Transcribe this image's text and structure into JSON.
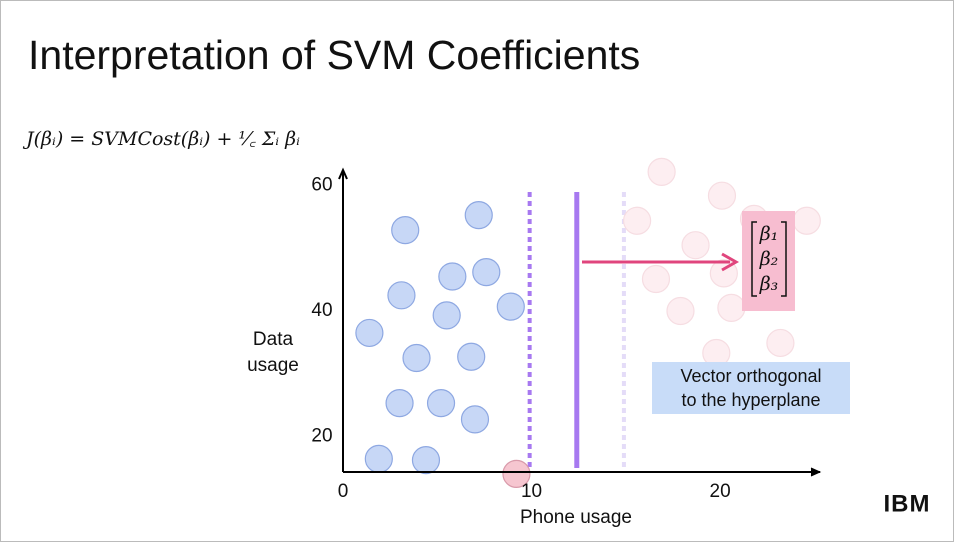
{
  "title": "Interpretation of SVM Coefficients",
  "formula": "J(βᵢ)  = SVMCost(βᵢ) + ¹⁄꜀ Σᵢ βᵢ",
  "logo": "IBM",
  "chart_data": {
    "type": "scatter",
    "x_label": "Phone usage",
    "y_label": [
      "Data",
      "usage"
    ],
    "xlim": [
      0,
      25.3
    ],
    "ylim": [
      7.6,
      62.5
    ],
    "xticks": [
      0,
      10,
      20
    ],
    "yticks": [
      20,
      40,
      60
    ],
    "series": [
      {
        "color": "#c7d7f6",
        "x": [
          3.3,
          7.2,
          5.8,
          7.6,
          3.1,
          5.5,
          8.9,
          1.4,
          3.9,
          6.8,
          3.0,
          5.2,
          7.0,
          1.9,
          4.4
        ],
        "values": [
          52.9,
          55.3,
          45.5,
          46.2,
          42.5,
          39.3,
          40.7,
          36.5,
          32.5,
          32.7,
          25.3,
          25.3,
          22.7,
          16.4,
          16.2
        ]
      },
      {
        "color": "#f6c6d0",
        "x": [
          9.2
        ],
        "values": [
          14.0
        ]
      },
      {
        "color": "#fdeef1",
        "x": [
          16.9,
          20.1,
          15.6,
          21.8,
          24.6,
          18.7,
          16.6,
          20.2,
          17.9,
          20.6,
          19.8,
          23.2
        ],
        "values": [
          62.2,
          58.4,
          54.4,
          54.7,
          54.4,
          50.5,
          45.1,
          46.0,
          40.0,
          40.5,
          33.3,
          34.9
        ]
      }
    ],
    "hyperplanes": {
      "x": [
        9.9,
        12.4,
        14.9
      ],
      "colors": [
        "#a779f0",
        "#a779f0",
        "#e4dcf8"
      ],
      "dashed": [
        true,
        false,
        true
      ]
    },
    "coefficient_vector": [
      "β₁",
      "β₂",
      "β₃"
    ],
    "annotation": [
      "Vector orthogonal",
      "to the hyperplane"
    ]
  }
}
